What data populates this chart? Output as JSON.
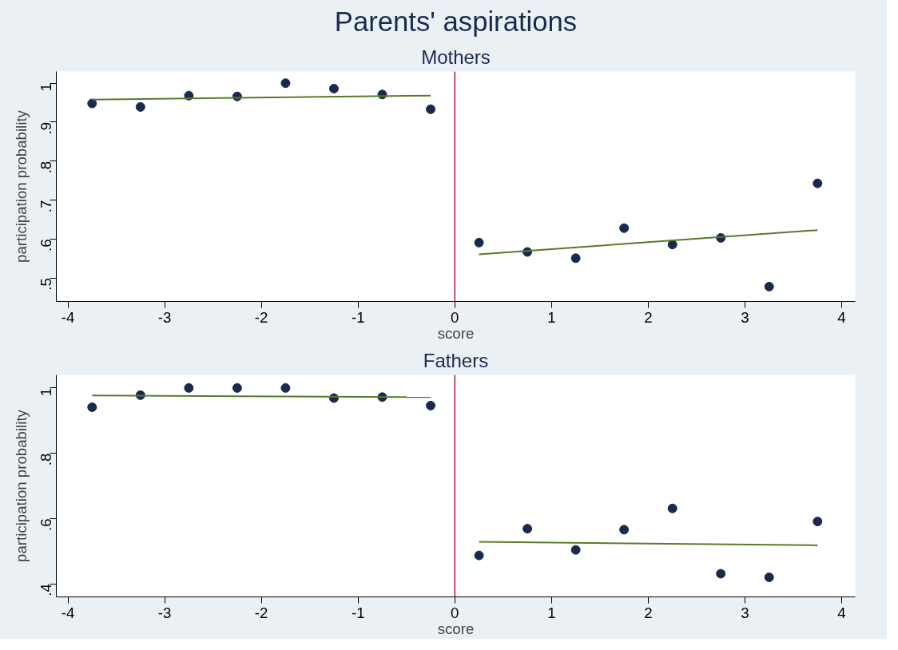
{
  "chart_data": [
    {
      "type": "scatter",
      "title": "Parents' aspirations",
      "subtitle": "Mothers",
      "xlabel": "score",
      "ylabel": "participation probability",
      "grid": false,
      "xlim": [
        -4.12,
        4.14
      ],
      "xticks": [
        -4,
        -3,
        -2,
        -1,
        0,
        1,
        2,
        3,
        4
      ],
      "ylim": [
        0.44,
        1.03
      ],
      "yticks": [
        {
          "value": 0.5,
          "label": ".5"
        },
        {
          "value": 0.6,
          "label": ".6"
        },
        {
          "value": 0.7,
          "label": ".7"
        },
        {
          "value": 0.8,
          "label": ".8"
        },
        {
          "value": 0.9,
          "label": ".9"
        },
        1
      ],
      "ref_lines": [
        {
          "axis": "x",
          "value": 0,
          "label": null,
          "color": "#b0173a"
        }
      ],
      "series": [
        {
          "marker": "circle",
          "color": "#1a2a4f",
          "x": [
            -3.75,
            -3.25,
            -2.75,
            -2.25,
            -1.75,
            -1.25,
            -0.75,
            -0.25
          ],
          "values": [
            0.948,
            0.939,
            0.968,
            0.966,
            1.0,
            0.986,
            0.971,
            0.933
          ]
        },
        {
          "marker": "circle",
          "color": "#1a2a4f",
          "x": [
            0.25,
            0.75,
            1.25,
            1.75,
            2.25,
            2.75,
            3.25,
            3.75
          ],
          "values": [
            0.591,
            0.567,
            0.551,
            0.628,
            0.586,
            0.603,
            0.478,
            0.743
          ]
        },
        {
          "type": "line",
          "marker": "none",
          "color": "#5a7a2a",
          "x": [
            -3.75,
            -0.25
          ],
          "values": [
            0.958,
            0.968
          ]
        },
        {
          "type": "line",
          "marker": "none",
          "color": "#5a7a2a",
          "x": [
            0.25,
            3.75
          ],
          "values": [
            0.561,
            0.623
          ]
        }
      ]
    },
    {
      "type": "scatter",
      "subtitle": "Fathers",
      "xlabel": "score",
      "ylabel": "participation probability",
      "grid": false,
      "xlim": [
        -4.12,
        4.14
      ],
      "xticks": [
        -4,
        -3,
        -2,
        -1,
        0,
        1,
        2,
        3,
        4
      ],
      "ylim": [
        0.36,
        1.04
      ],
      "yticks": [
        {
          "value": 0.4,
          "label": ".4"
        },
        {
          "value": 0.6,
          "label": ".6"
        },
        {
          "value": 0.8,
          "label": ".8"
        },
        1
      ],
      "ref_lines": [
        {
          "axis": "x",
          "value": 0,
          "label": null,
          "color": "#b0173a"
        }
      ],
      "series": [
        {
          "marker": "circle",
          "color": "#1a2a4f",
          "x": [
            -3.75,
            -3.25,
            -2.75,
            -2.25,
            -1.75,
            -1.25,
            -0.75,
            -0.25
          ],
          "values": [
            0.941,
            0.978,
            1.0,
            1.0,
            1.0,
            0.969,
            0.972,
            0.946
          ]
        },
        {
          "marker": "circle",
          "color": "#1a2a4f",
          "x": [
            0.25,
            0.75,
            1.25,
            1.75,
            2.25,
            2.75,
            3.25,
            3.75
          ],
          "values": [
            0.487,
            0.569,
            0.504,
            0.566,
            0.631,
            0.431,
            0.42,
            0.591
          ]
        },
        {
          "type": "line",
          "marker": "none",
          "color": "#5a7a2a",
          "x": [
            -3.75,
            -0.25
          ],
          "values": [
            0.977,
            0.972
          ]
        },
        {
          "type": "line",
          "marker": "none",
          "color": "#5a7a2a",
          "x": [
            0.25,
            3.75
          ],
          "values": [
            0.529,
            0.518
          ]
        }
      ]
    }
  ]
}
